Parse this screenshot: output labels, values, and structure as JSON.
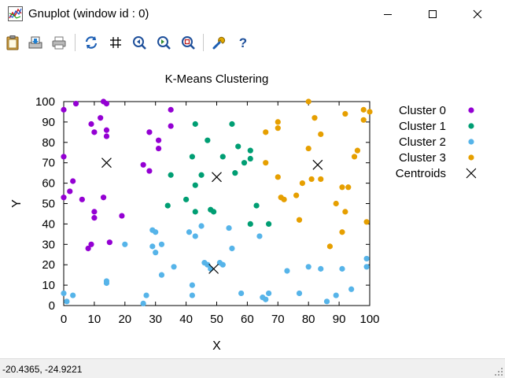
{
  "window": {
    "title": "Gnuplot (window id : 0)",
    "controls": {
      "minimize": "minimize",
      "maximize": "maximize",
      "close": "close"
    }
  },
  "toolbar": {
    "buttons": [
      {
        "name": "clipboard",
        "icon": "clipboard-icon"
      },
      {
        "name": "print-to-file",
        "icon": "save-print-icon"
      },
      {
        "name": "print",
        "icon": "printer-icon"
      },
      {
        "name": "replot",
        "icon": "refresh-icon"
      },
      {
        "name": "grid",
        "icon": "grid-icon"
      },
      {
        "name": "zoom-previous",
        "icon": "zoom-previous-icon"
      },
      {
        "name": "zoom-next",
        "icon": "zoom-next-icon"
      },
      {
        "name": "autoscale",
        "icon": "zoom-autoscale-icon"
      },
      {
        "name": "options",
        "icon": "wrench-icon"
      },
      {
        "name": "help",
        "icon": "help-icon"
      }
    ]
  },
  "status": {
    "text": "-20.4365, -24.9221"
  },
  "colors": {
    "cluster0": "#9400d3",
    "cluster1": "#009e73",
    "cluster2": "#56b4e9",
    "cluster3": "#e69f00",
    "centroid": "#000000"
  },
  "chart_data": {
    "type": "scatter",
    "title": "K-Means Clustering",
    "xlabel": "X",
    "ylabel": "Y",
    "xlim": [
      0,
      100
    ],
    "ylim": [
      0,
      100
    ],
    "xticks": [
      0,
      10,
      20,
      30,
      40,
      50,
      60,
      70,
      80,
      90,
      100
    ],
    "yticks": [
      0,
      10,
      20,
      30,
      40,
      50,
      60,
      70,
      80,
      90,
      100
    ],
    "grid": false,
    "legend": "right",
    "series": [
      {
        "name": "Cluster 0",
        "marker": "circle",
        "points": [
          [
            0,
            96
          ],
          [
            0,
            73
          ],
          [
            0,
            53
          ],
          [
            2,
            56
          ],
          [
            3,
            61
          ],
          [
            4,
            99
          ],
          [
            6,
            52
          ],
          [
            8,
            28
          ],
          [
            9,
            30
          ],
          [
            9,
            89
          ],
          [
            10,
            85
          ],
          [
            10,
            46
          ],
          [
            10,
            43
          ],
          [
            12,
            92
          ],
          [
            13,
            53
          ],
          [
            13,
            100
          ],
          [
            14,
            86
          ],
          [
            14,
            83
          ],
          [
            14,
            99
          ],
          [
            15,
            31
          ],
          [
            19,
            44
          ],
          [
            26,
            69
          ],
          [
            28,
            85
          ],
          [
            28,
            66
          ],
          [
            31,
            81
          ],
          [
            31,
            77
          ],
          [
            35,
            96
          ],
          [
            35,
            88
          ]
        ]
      },
      {
        "name": "Cluster 1",
        "marker": "circle",
        "points": [
          [
            34,
            49
          ],
          [
            35,
            64
          ],
          [
            40,
            52
          ],
          [
            42,
            73
          ],
          [
            43,
            59
          ],
          [
            43,
            46
          ],
          [
            43,
            89
          ],
          [
            45,
            64
          ],
          [
            47,
            81
          ],
          [
            48,
            47
          ],
          [
            49,
            46
          ],
          [
            52,
            73
          ],
          [
            55,
            89
          ],
          [
            56,
            65
          ],
          [
            57,
            78
          ],
          [
            59,
            70
          ],
          [
            61,
            76
          ],
          [
            61,
            72
          ],
          [
            61,
            40
          ],
          [
            63,
            49
          ],
          [
            67,
            40
          ]
        ]
      },
      {
        "name": "Cluster 2",
        "marker": "circle",
        "points": [
          [
            0,
            6
          ],
          [
            1,
            2
          ],
          [
            3,
            5
          ],
          [
            14,
            12
          ],
          [
            14,
            11
          ],
          [
            20,
            30
          ],
          [
            26,
            1
          ],
          [
            27,
            5
          ],
          [
            29,
            37
          ],
          [
            29,
            29
          ],
          [
            30,
            26
          ],
          [
            30,
            36
          ],
          [
            32,
            30
          ],
          [
            32,
            15
          ],
          [
            36,
            19
          ],
          [
            41,
            36
          ],
          [
            42,
            10
          ],
          [
            42,
            5
          ],
          [
            43,
            34
          ],
          [
            45,
            39
          ],
          [
            46,
            21
          ],
          [
            47,
            20
          ],
          [
            48,
            18
          ],
          [
            51,
            21
          ],
          [
            52,
            20
          ],
          [
            54,
            38
          ],
          [
            55,
            28
          ],
          [
            58,
            6
          ],
          [
            64,
            34
          ],
          [
            65,
            4
          ],
          [
            66,
            3
          ],
          [
            67,
            6
          ],
          [
            73,
            17
          ],
          [
            77,
            6
          ],
          [
            80,
            19
          ],
          [
            84,
            18
          ],
          [
            86,
            2
          ],
          [
            89,
            5
          ],
          [
            91,
            18
          ],
          [
            94,
            8
          ],
          [
            99,
            23
          ],
          [
            99,
            19
          ]
        ]
      },
      {
        "name": "Cluster 3",
        "marker": "circle",
        "points": [
          [
            66,
            70
          ],
          [
            66,
            85
          ],
          [
            70,
            63
          ],
          [
            70,
            90
          ],
          [
            70,
            87
          ],
          [
            71,
            53
          ],
          [
            72,
            52
          ],
          [
            76,
            54
          ],
          [
            77,
            42
          ],
          [
            78,
            60
          ],
          [
            80,
            77
          ],
          [
            80,
            100
          ],
          [
            81,
            62
          ],
          [
            82,
            92
          ],
          [
            84,
            62
          ],
          [
            84,
            84
          ],
          [
            87,
            29
          ],
          [
            89,
            50
          ],
          [
            91,
            36
          ],
          [
            91,
            58
          ],
          [
            92,
            46
          ],
          [
            92,
            94
          ],
          [
            93,
            58
          ],
          [
            95,
            73
          ],
          [
            96,
            76
          ],
          [
            98,
            91
          ],
          [
            98,
            96
          ],
          [
            99,
            41
          ],
          [
            100,
            95
          ]
        ]
      },
      {
        "name": "Centroids",
        "marker": "x",
        "points": [
          [
            14,
            70
          ],
          [
            50,
            63
          ],
          [
            49,
            18
          ],
          [
            83,
            69
          ]
        ]
      }
    ]
  }
}
